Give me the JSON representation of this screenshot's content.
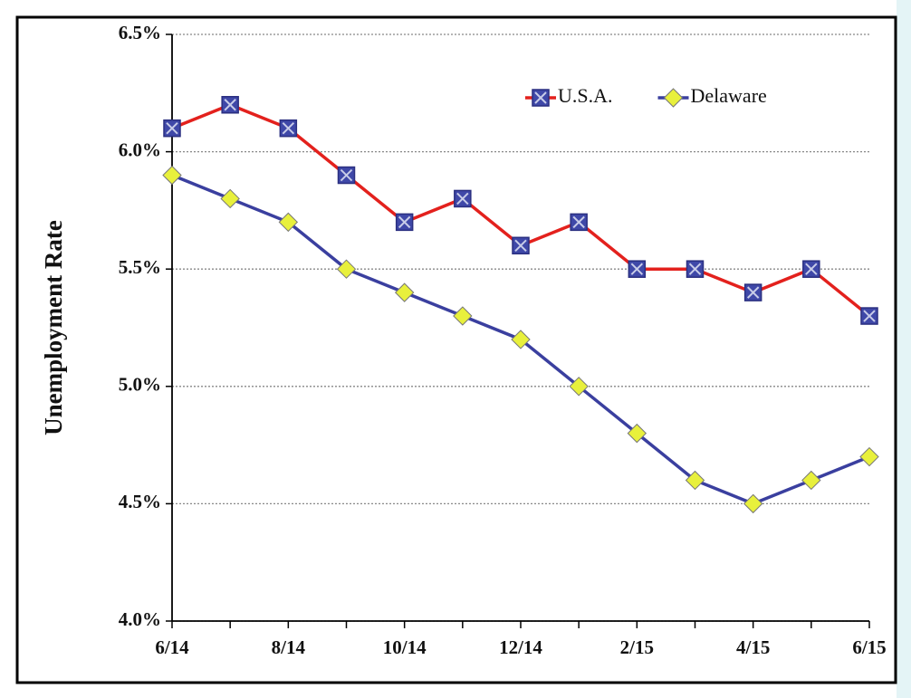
{
  "chart_data": {
    "type": "line",
    "y_label": "Unemployment Rate",
    "categories": [
      "6/14",
      null,
      "8/14",
      null,
      "10/14",
      null,
      "12/14",
      null,
      "2/15",
      null,
      "4/15",
      null,
      "6/15"
    ],
    "series": [
      {
        "name": "U.S.A.",
        "color": "#e3211d",
        "marker": "square-x",
        "marker_color": "#3f48a8",
        "values": [
          6.1,
          6.2,
          6.1,
          5.9,
          5.7,
          5.8,
          5.6,
          5.7,
          5.5,
          5.5,
          5.4,
          5.5,
          5.3
        ]
      },
      {
        "name": "Delaware",
        "color": "#3a3f9f",
        "marker": "diamond",
        "marker_color": "#e8f03c",
        "values": [
          5.9,
          5.8,
          5.7,
          5.5,
          5.4,
          5.3,
          5.2,
          5.0,
          4.8,
          4.6,
          4.5,
          4.6,
          4.7
        ]
      }
    ],
    "ylim": [
      4.0,
      6.5
    ],
    "yticks": [
      {
        "value": 4.0,
        "label": "4.0%"
      },
      {
        "value": 4.5,
        "label": "4.5%"
      },
      {
        "value": 5.0,
        "label": "5.0%"
      },
      {
        "value": 5.5,
        "label": "5.5%"
      },
      {
        "value": 6.0,
        "label": "6.0%"
      },
      {
        "value": 6.5,
        "label": "6.5%"
      }
    ],
    "grid": true,
    "legend": "top-right"
  }
}
